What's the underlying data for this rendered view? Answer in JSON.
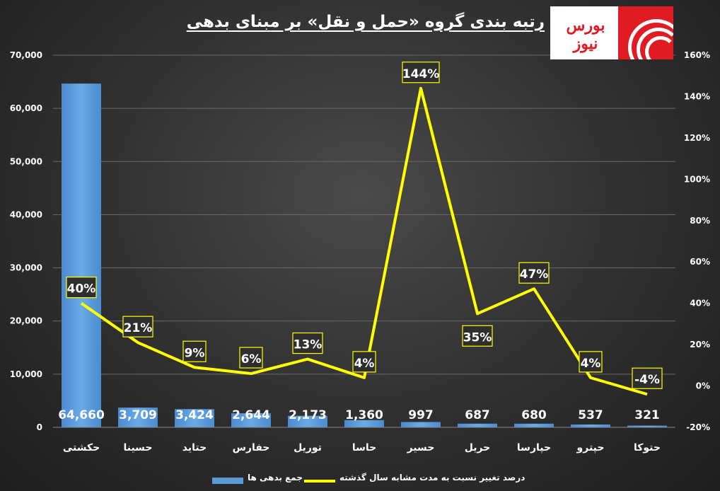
{
  "chart_data": {
    "type": "bar+line",
    "title": "رتبه بندی گروه «حمل و نقل» بر مبنای بدهی",
    "categories": [
      "حکشتی",
      "حسینا",
      "حتاید",
      "حفارس",
      "توریل",
      "حاسا",
      "حسیر",
      "حریل",
      "حپارسا",
      "حپترو",
      "حتوکا"
    ],
    "series": [
      {
        "name": "جمع بدهی ها",
        "type": "bar",
        "axis": "left",
        "color": "#5b9bd5",
        "values": [
          64660,
          3709,
          3424,
          2644,
          2173,
          1360,
          997,
          687,
          680,
          537,
          321
        ],
        "labels": [
          "64,660",
          "3,709",
          "3,424",
          "2,644",
          "2,173",
          "1,360",
          "997",
          "687",
          "680",
          "537",
          "321"
        ]
      },
      {
        "name": "درصد تغییر نسبت به مدت مشابه سال گذشته",
        "type": "line",
        "axis": "right",
        "color": "#ffff00",
        "values": [
          40,
          21,
          9,
          6,
          13,
          4,
          144,
          35,
          47,
          4,
          -4
        ],
        "labels": [
          "40%",
          "21%",
          "9%",
          "6%",
          "13%",
          "4%",
          "144%",
          "35%",
          "47%",
          "4%",
          "-4%"
        ]
      }
    ],
    "y_left": {
      "range": [
        0,
        70000
      ],
      "ticks": [
        0,
        10000,
        20000,
        30000,
        40000,
        50000,
        60000,
        70000
      ],
      "tick_labels": [
        "0",
        "10,000",
        "20,000",
        "30,000",
        "40,000",
        "50,000",
        "60,000",
        "70,000"
      ]
    },
    "y_right": {
      "range": [
        -20,
        160
      ],
      "ticks": [
        -20,
        0,
        20,
        40,
        60,
        80,
        100,
        120,
        140,
        160
      ],
      "tick_labels": [
        "-20%",
        "0%",
        "20%",
        "40%",
        "60%",
        "80%",
        "100%",
        "120%",
        "140%",
        "160%"
      ]
    },
    "grid": true,
    "legend_position": "bottom"
  },
  "logo": {
    "text": "بورس نیوز",
    "brand_color": "#e11b22"
  }
}
